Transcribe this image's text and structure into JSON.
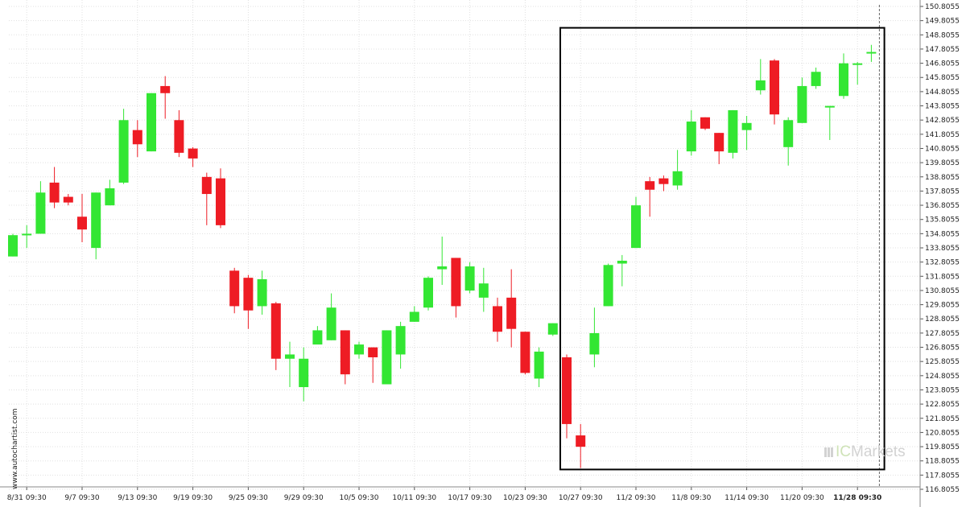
{
  "watermark": "www.autochartist.com",
  "logo": {
    "ic": "IC",
    "markets": "Markets"
  },
  "colors": {
    "up": "#33e633",
    "down": "#ee1c24",
    "wick": "#33e633",
    "wick_down": "#ee1c24",
    "box": "#000000",
    "grid": "#e0e0e0"
  },
  "chart_data": {
    "type": "candlestick",
    "y_tick_labels": [
      "150.8055",
      "149.8055",
      "148.8055",
      "147.8055",
      "146.8055",
      "145.8055",
      "144.8055",
      "143.8055",
      "142.8055",
      "141.8055",
      "140.8055",
      "139.8055",
      "138.8055",
      "137.8055",
      "136.8055",
      "135.8055",
      "134.8055",
      "133.8055",
      "132.8055",
      "131.8055",
      "130.8055",
      "129.8055",
      "128.8055",
      "127.8055",
      "126.8055",
      "125.8055",
      "124.8055",
      "123.8055",
      "122.8055",
      "121.8055",
      "120.8055",
      "119.8055",
      "118.8055",
      "117.8055",
      "116.8055"
    ],
    "ylim": [
      116.8055,
      150.8055
    ],
    "x_tick_labels": [
      {
        "label": "8/31 09:30",
        "index": 1
      },
      {
        "label": "9/7 09:30",
        "index": 5
      },
      {
        "label": "9/13 09:30",
        "index": 9
      },
      {
        "label": "9/19 09:30",
        "index": 13
      },
      {
        "label": "9/25 09:30",
        "index": 17
      },
      {
        "label": "9/29 09:30",
        "index": 21
      },
      {
        "label": "10/5 09:30",
        "index": 25
      },
      {
        "label": "10/11 09:30",
        "index": 29
      },
      {
        "label": "10/17 09:30",
        "index": 33
      },
      {
        "label": "10/23 09:30",
        "index": 37
      },
      {
        "label": "10/27 09:30",
        "index": 41
      },
      {
        "label": "11/2 09:30",
        "index": 45
      },
      {
        "label": "11/8 09:30",
        "index": 49
      },
      {
        "label": "11/14 09:30",
        "index": 53
      },
      {
        "label": "11/20 09:30",
        "index": 57
      },
      {
        "label": "11/28 09:30",
        "index": 61,
        "bold": true
      }
    ],
    "candles": [
      {
        "o": 133.2,
        "h": 134.8,
        "l": 133.2,
        "c": 134.7
      },
      {
        "o": 134.7,
        "h": 135.4,
        "l": 133.8,
        "c": 134.8
      },
      {
        "o": 134.8,
        "h": 138.5,
        "l": 134.8,
        "c": 137.7
      },
      {
        "o": 138.4,
        "h": 139.5,
        "l": 136.6,
        "c": 137.0
      },
      {
        "o": 137.4,
        "h": 137.6,
        "l": 136.8,
        "c": 137.0
      },
      {
        "o": 136.0,
        "h": 137.6,
        "l": 134.2,
        "c": 135.1
      },
      {
        "o": 133.8,
        "h": 137.7,
        "l": 133.0,
        "c": 137.7
      },
      {
        "o": 136.8,
        "h": 138.6,
        "l": 136.8,
        "c": 138.0
      },
      {
        "o": 138.4,
        "h": 143.6,
        "l": 138.3,
        "c": 142.8
      },
      {
        "o": 142.1,
        "h": 142.8,
        "l": 140.2,
        "c": 141.1
      },
      {
        "o": 140.6,
        "h": 144.7,
        "l": 140.6,
        "c": 144.7
      },
      {
        "o": 145.2,
        "h": 145.9,
        "l": 142.9,
        "c": 144.7
      },
      {
        "o": 142.8,
        "h": 143.5,
        "l": 140.2,
        "c": 140.5
      },
      {
        "o": 140.8,
        "h": 140.9,
        "l": 139.5,
        "c": 140.1
      },
      {
        "o": 138.8,
        "h": 139.1,
        "l": 135.4,
        "c": 137.6
      },
      {
        "o": 138.7,
        "h": 139.4,
        "l": 135.2,
        "c": 135.4
      },
      {
        "o": 132.2,
        "h": 132.4,
        "l": 129.2,
        "c": 129.7
      },
      {
        "o": 131.7,
        "h": 131.9,
        "l": 128.1,
        "c": 129.4
      },
      {
        "o": 129.7,
        "h": 132.2,
        "l": 129.1,
        "c": 131.6
      },
      {
        "o": 129.9,
        "h": 130.0,
        "l": 125.2,
        "c": 126.0
      },
      {
        "o": 126.0,
        "h": 127.2,
        "l": 124.0,
        "c": 126.3
      },
      {
        "o": 124.0,
        "h": 126.8,
        "l": 123.0,
        "c": 126.0
      },
      {
        "o": 127.0,
        "h": 128.3,
        "l": 127.2,
        "c": 128.0
      },
      {
        "o": 127.3,
        "h": 130.6,
        "l": 127.3,
        "c": 129.6
      },
      {
        "o": 128.0,
        "h": 128.0,
        "l": 124.2,
        "c": 124.9
      },
      {
        "o": 126.3,
        "h": 127.2,
        "l": 126.0,
        "c": 127.0
      },
      {
        "o": 126.8,
        "h": 126.8,
        "l": 124.3,
        "c": 126.1
      },
      {
        "o": 124.2,
        "h": 128.0,
        "l": 124.2,
        "c": 128.0
      },
      {
        "o": 126.3,
        "h": 128.6,
        "l": 125.3,
        "c": 128.3
      },
      {
        "o": 128.6,
        "h": 129.7,
        "l": 128.6,
        "c": 129.3
      },
      {
        "o": 129.6,
        "h": 131.8,
        "l": 129.4,
        "c": 131.7
      },
      {
        "o": 132.3,
        "h": 134.6,
        "l": 131.2,
        "c": 132.5
      },
      {
        "o": 133.1,
        "h": 133.1,
        "l": 128.9,
        "c": 129.7
      },
      {
        "o": 130.8,
        "h": 132.8,
        "l": 130.6,
        "c": 132.5
      },
      {
        "o": 130.3,
        "h": 132.4,
        "l": 129.3,
        "c": 131.3
      },
      {
        "o": 129.7,
        "h": 130.3,
        "l": 127.2,
        "c": 127.9
      },
      {
        "o": 130.3,
        "h": 132.3,
        "l": 126.8,
        "c": 128.1
      },
      {
        "o": 127.9,
        "h": 127.9,
        "l": 124.9,
        "c": 125.0
      },
      {
        "o": 124.6,
        "h": 126.8,
        "l": 124.0,
        "c": 126.5
      },
      {
        "o": 127.7,
        "h": 128.5,
        "l": 127.6,
        "c": 128.5
      },
      {
        "o": 126.1,
        "h": 126.3,
        "l": 120.4,
        "c": 121.4
      },
      {
        "o": 120.6,
        "h": 121.4,
        "l": 118.3,
        "c": 119.8
      },
      {
        "o": 126.3,
        "h": 129.6,
        "l": 125.4,
        "c": 127.8
      },
      {
        "o": 129.7,
        "h": 132.7,
        "l": 129.7,
        "c": 132.6
      },
      {
        "o": 132.7,
        "h": 133.3,
        "l": 131.1,
        "c": 132.9
      },
      {
        "o": 133.8,
        "h": 137.4,
        "l": 133.8,
        "c": 136.8
      },
      {
        "o": 138.5,
        "h": 138.8,
        "l": 136.0,
        "c": 137.9
      },
      {
        "o": 138.7,
        "h": 138.9,
        "l": 137.8,
        "c": 138.3
      },
      {
        "o": 138.2,
        "h": 140.7,
        "l": 137.9,
        "c": 139.2
      },
      {
        "o": 140.6,
        "h": 143.5,
        "l": 140.3,
        "c": 142.7
      },
      {
        "o": 143.0,
        "h": 143.0,
        "l": 142.1,
        "c": 142.2
      },
      {
        "o": 141.9,
        "h": 141.9,
        "l": 139.7,
        "c": 140.6
      },
      {
        "o": 140.5,
        "h": 143.5,
        "l": 140.1,
        "c": 143.5
      },
      {
        "o": 142.1,
        "h": 143.1,
        "l": 140.7,
        "c": 142.6
      },
      {
        "o": 144.9,
        "h": 147.1,
        "l": 144.6,
        "c": 145.6
      },
      {
        "o": 147.0,
        "h": 147.1,
        "l": 142.5,
        "c": 143.2
      },
      {
        "o": 140.9,
        "h": 143.0,
        "l": 139.6,
        "c": 142.8
      },
      {
        "o": 142.6,
        "h": 145.8,
        "l": 142.6,
        "c": 145.2
      },
      {
        "o": 145.2,
        "h": 146.5,
        "l": 145.0,
        "c": 146.2
      },
      {
        "o": 143.8,
        "h": 143.8,
        "l": 141.4,
        "c": 143.8
      },
      {
        "o": 144.5,
        "h": 147.5,
        "l": 144.3,
        "c": 146.8
      },
      {
        "o": 146.8,
        "h": 146.9,
        "l": 145.3,
        "c": 146.8
      },
      {
        "o": 147.5,
        "h": 148.1,
        "l": 146.9,
        "c": 147.6
      }
    ],
    "pattern_box": {
      "start_index": 40,
      "end_index": 63,
      "low": 118.2,
      "high": 149.3
    },
    "current_marker_index": 62,
    "grid": true
  }
}
